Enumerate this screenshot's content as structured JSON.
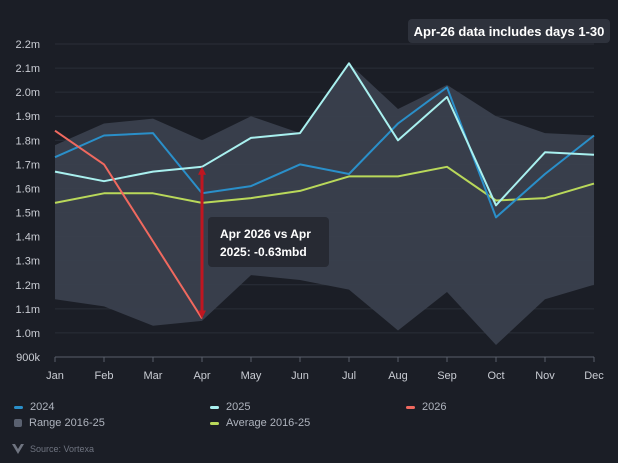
{
  "note": "Apr-26 data includes days 1-30",
  "source": "Source: Vortexa",
  "colors": {
    "s2024": "#2a8fc9",
    "s2025": "#a9f0ef",
    "s2026": "#f0695f",
    "range": "#3b414e",
    "average": "#b9d85a",
    "arrow": "#c01620",
    "background": "#1b1e26"
  },
  "chart_data": {
    "type": "line",
    "categories": [
      "Jan",
      "Feb",
      "Mar",
      "Apr",
      "May",
      "Jun",
      "Jul",
      "Aug",
      "Sep",
      "Oct",
      "Nov",
      "Dec"
    ],
    "y_ticks": [
      "900k",
      "1.0m",
      "1.1m",
      "1.2m",
      "1.3m",
      "1.4m",
      "1.5m",
      "1.6m",
      "1.7m",
      "1.8m",
      "1.9m",
      "2.0m",
      "2.1m",
      "2.2m"
    ],
    "ylim": [
      0.9,
      2.2
    ],
    "grid": true,
    "legend_position": "bottom",
    "series": [
      {
        "name": "2024",
        "color": "#2a8fc9",
        "values": [
          1.73,
          1.82,
          1.83,
          1.58,
          1.61,
          1.7,
          1.66,
          1.87,
          2.02,
          1.48,
          1.66,
          1.82
        ]
      },
      {
        "name": "2025",
        "color": "#a9f0ef",
        "values": [
          1.67,
          1.63,
          1.67,
          1.69,
          1.81,
          1.83,
          2.12,
          1.8,
          1.98,
          1.53,
          1.75,
          1.74
        ]
      },
      {
        "name": "2026",
        "color": "#f0695f",
        "values": [
          1.84,
          1.7,
          1.38,
          1.06,
          null,
          null,
          null,
          null,
          null,
          null,
          null,
          null
        ]
      },
      {
        "name": "Average 2016-25",
        "color": "#b9d85a",
        "values": [
          1.54,
          1.58,
          1.58,
          1.54,
          1.56,
          1.59,
          1.65,
          1.65,
          1.69,
          1.55,
          1.56,
          1.62
        ]
      }
    ],
    "range": {
      "name": "Range 2016-25",
      "color": "#3b414e",
      "max": [
        1.78,
        1.87,
        1.89,
        1.8,
        1.9,
        1.83,
        2.12,
        1.93,
        2.03,
        1.9,
        1.83,
        1.82
      ],
      "min": [
        1.14,
        1.11,
        1.03,
        1.05,
        1.24,
        1.22,
        1.18,
        1.01,
        1.17,
        0.95,
        1.14,
        1.2
      ]
    },
    "annotation": {
      "text_line1": "Apr 2026 vs Apr",
      "text_line2": "2025: -0.63mbd",
      "month": "Apr",
      "from": 1.06,
      "to": 1.69
    }
  },
  "legend": [
    {
      "label": "2024",
      "kind": "line",
      "color": "#2a8fc9"
    },
    {
      "label": "2025",
      "kind": "line",
      "color": "#a9f0ef"
    },
    {
      "label": "2026",
      "kind": "line",
      "color": "#f0695f"
    },
    {
      "label": "Range 2016-25",
      "kind": "box",
      "color": "#5a6170"
    },
    {
      "label": "Average 2016-25",
      "kind": "line",
      "color": "#b9d85a"
    }
  ]
}
